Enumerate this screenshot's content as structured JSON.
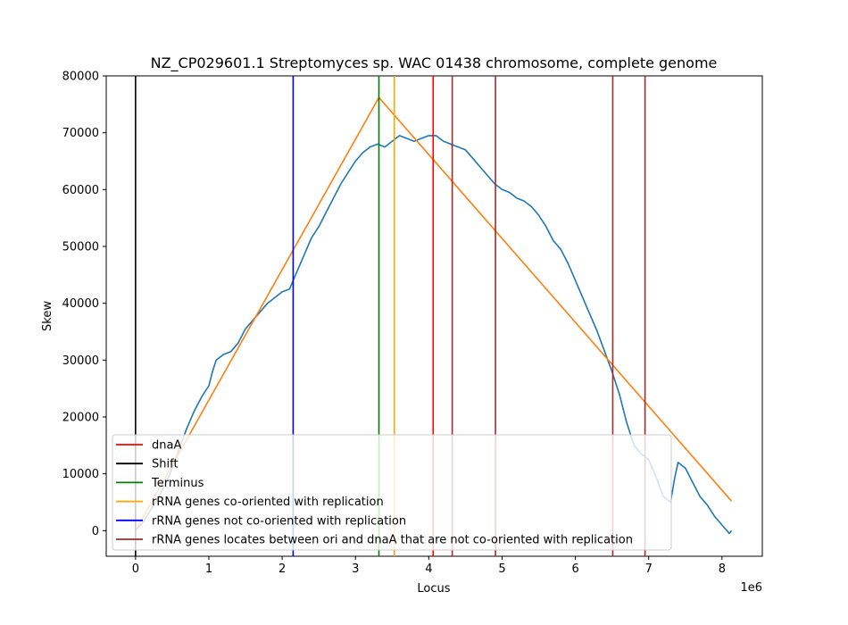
{
  "chart_data": {
    "type": "line",
    "title": "NZ_CP029601.1 Streptomyces sp. WAC 01438 chromosome, complete genome",
    "xlabel": "Locus",
    "ylabel": "Skew",
    "x_offset_label": "1e6",
    "xlim": [
      -400000,
      8550000
    ],
    "ylim": [
      -4500,
      80000
    ],
    "x_ticks": [
      0,
      1000000,
      2000000,
      3000000,
      4000000,
      5000000,
      6000000,
      7000000,
      8000000
    ],
    "x_tick_labels": [
      "0",
      "1",
      "2",
      "3",
      "4",
      "5",
      "6",
      "7",
      "8"
    ],
    "y_ticks": [
      0,
      10000,
      20000,
      30000,
      40000,
      50000,
      60000,
      70000,
      80000
    ],
    "y_tick_labels": [
      "0",
      "10000",
      "20000",
      "30000",
      "40000",
      "50000",
      "60000",
      "70000",
      "80000"
    ],
    "grid": false,
    "legend_position": "bottom-left",
    "series": [
      {
        "color": "#1f77b4",
        "x": [
          0,
          100000,
          200000,
          300000,
          400000,
          500000,
          600000,
          700000,
          800000,
          900000,
          1000000,
          1050000,
          1100000,
          1200000,
          1300000,
          1400000,
          1500000,
          1600000,
          1700000,
          1800000,
          1900000,
          2000000,
          2100000,
          2200000,
          2300000,
          2400000,
          2500000,
          2600000,
          2700000,
          2800000,
          2900000,
          3000000,
          3100000,
          3200000,
          3300000,
          3400000,
          3500000,
          3600000,
          3700000,
          3800000,
          3900000,
          4000000,
          4100000,
          4200000,
          4300000,
          4400000,
          4500000,
          4600000,
          4700000,
          4800000,
          4900000,
          5000000,
          5100000,
          5200000,
          5300000,
          5400000,
          5500000,
          5600000,
          5700000,
          5800000,
          5900000,
          6000000,
          6100000,
          6200000,
          6300000,
          6400000,
          6500000,
          6600000,
          6700000,
          6800000,
          6900000,
          7000000,
          7100000,
          7200000,
          7300000,
          7350000,
          7400000,
          7450000,
          7500000,
          7600000,
          7700000,
          7800000,
          7900000,
          8000000,
          8100000,
          8130000
        ],
        "y": [
          0,
          1500,
          3500,
          5500,
          8000,
          11000,
          14500,
          18000,
          21000,
          23500,
          25500,
          28000,
          30000,
          31000,
          31500,
          33000,
          35500,
          37000,
          38500,
          40000,
          41000,
          42000,
          42500,
          45500,
          48500,
          51500,
          53500,
          56000,
          58500,
          61000,
          63000,
          65000,
          66500,
          67500,
          68000,
          67500,
          68500,
          69500,
          69000,
          68500,
          69000,
          69500,
          69500,
          68500,
          68000,
          67500,
          67000,
          65500,
          64000,
          62500,
          61000,
          60000,
          59500,
          58500,
          58000,
          57000,
          55500,
          53500,
          51000,
          49500,
          47000,
          44000,
          41000,
          38000,
          35000,
          31500,
          28000,
          24000,
          19000,
          15000,
          13500,
          12500,
          9500,
          6000,
          5000,
          9000,
          12000,
          11500,
          11000,
          8500,
          6000,
          4500,
          2500,
          1000,
          -500,
          0
        ]
      },
      {
        "color": "#ff7f0e",
        "x": [
          0,
          3320000,
          8130000
        ],
        "y": [
          0,
          76200,
          5200
        ]
      }
    ],
    "vertical_lines": [
      {
        "x": 0,
        "color": "#000000"
      },
      {
        "x": 2150000,
        "color": "#0000ff"
      },
      {
        "x": 3320000,
        "color": "#008000"
      },
      {
        "x": 3530000,
        "color": "#ffa500"
      },
      {
        "x": 4060000,
        "color": "#ff0000"
      },
      {
        "x": 4320000,
        "color": "#a52a2a"
      },
      {
        "x": 4910000,
        "color": "#a52a2a"
      },
      {
        "x": 6510000,
        "color": "#a52a2a"
      },
      {
        "x": 6950000,
        "color": "#a52a2a"
      }
    ],
    "legend": [
      {
        "label": "dnaA",
        "color": "#ff0000"
      },
      {
        "label": "Shift",
        "color": "#000000"
      },
      {
        "label": "Terminus",
        "color": "#008000"
      },
      {
        "label": "rRNA genes co-oriented with replication",
        "color": "#ffa500"
      },
      {
        "label": "rRNA genes not co-oriented with replication",
        "color": "#0000ff"
      },
      {
        "label": "rRNA genes locates between ori and dnaA that are not co-oriented with replication",
        "color": "#a52a2a"
      }
    ]
  }
}
